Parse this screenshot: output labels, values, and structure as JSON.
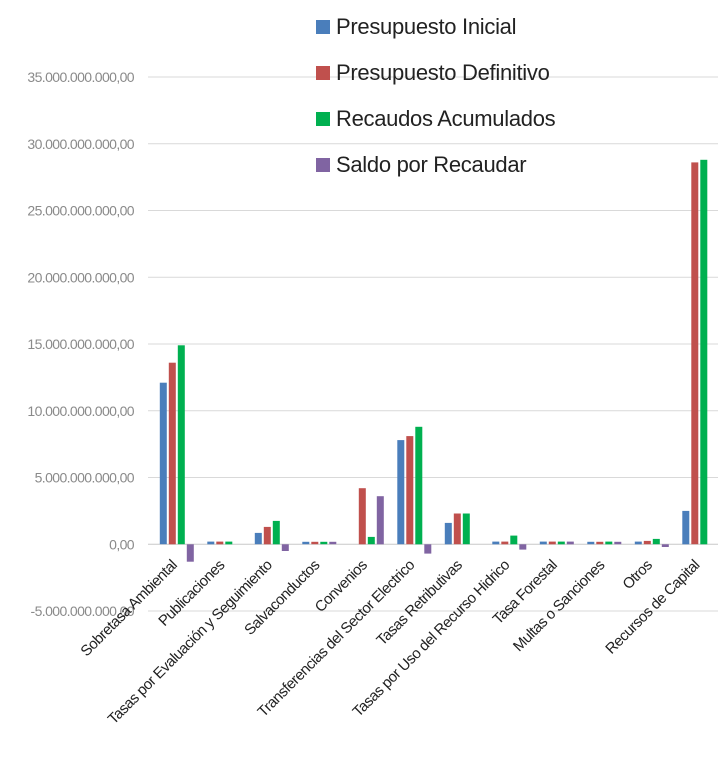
{
  "chart_data": {
    "type": "bar",
    "categories": [
      "Sobretasa Ambiental",
      "Publicaciones",
      "Tasas por Evaluación y Seguimiento",
      "Salvaconductos",
      "Convenios",
      "Transferencias del Sector Electrico",
      "Tasas Retributivas",
      "Tasas por Uso del Recurso Hidrico",
      "Tasa Forestal",
      "Multas o Sanciones",
      "Otros",
      "Recursos de Capital"
    ],
    "series": [
      {
        "name": "Presupuesto Inicial",
        "color": "#4a7ebb",
        "values": [
          12100000000,
          200000000,
          850000000,
          180000000,
          0,
          7800000000,
          1600000000,
          200000000,
          200000000,
          180000000,
          200000000,
          2500000000
        ]
      },
      {
        "name": "Presupuesto Definitivo",
        "color": "#c0504d",
        "values": [
          13600000000,
          200000000,
          1300000000,
          180000000,
          4200000000,
          8100000000,
          2300000000,
          200000000,
          200000000,
          180000000,
          250000000,
          28600000000
        ]
      },
      {
        "name": "Recaudos Acumulados",
        "color": "#00b050",
        "values": [
          14900000000,
          200000000,
          1750000000,
          180000000,
          550000000,
          8800000000,
          2300000000,
          650000000,
          200000000,
          200000000,
          400000000,
          28800000000
        ]
      },
      {
        "name": "Saldo por Recaudar",
        "color": "#8064a2",
        "values": [
          -1300000000,
          0,
          -500000000,
          180000000,
          3600000000,
          -700000000,
          0,
          -400000000,
          200000000,
          180000000,
          -200000000,
          0
        ]
      }
    ],
    "y_ticks": [
      "-5.000.000.000,00",
      "0,00",
      "5.000.000.000,00",
      "10.000.000.000,00",
      "15.000.000.000,00",
      "20.000.000.000,00",
      "25.000.000.000,00",
      "30.000.000.000,00",
      "35.000.000.000,00"
    ],
    "y_tick_values": [
      -5000000000,
      0,
      5000000000,
      10000000000,
      15000000000,
      20000000000,
      25000000000,
      30000000000,
      35000000000
    ],
    "ylim": [
      -5000000000,
      35000000000
    ],
    "grid": true,
    "legend_position": "top-right"
  }
}
